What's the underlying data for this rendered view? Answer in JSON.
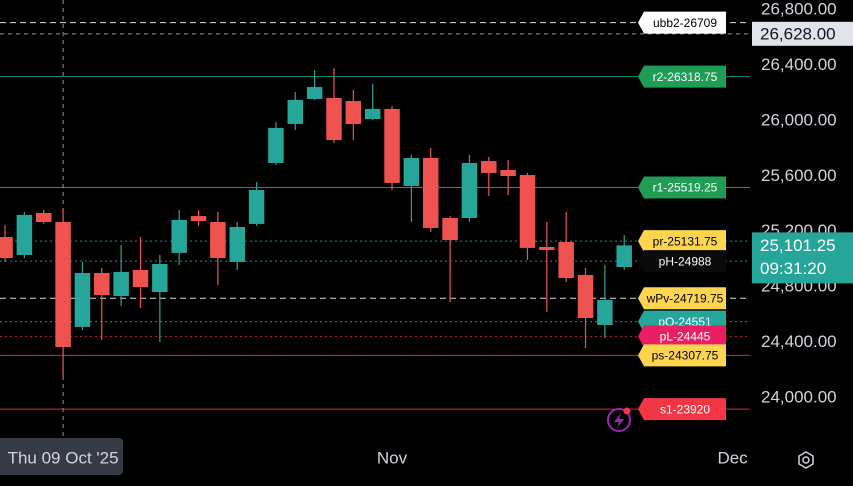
{
  "chart_data": {
    "type": "candlestick",
    "up_color": "#26a69a",
    "down_color": "#ef5350",
    "x": [
      0,
      1,
      2,
      3,
      4,
      5,
      6,
      7,
      8,
      9,
      10,
      11,
      12,
      13,
      14,
      15,
      16,
      17,
      18,
      19,
      20,
      21,
      22,
      23,
      24,
      25,
      26,
      27,
      28,
      29,
      30,
      31,
      32
    ],
    "open": [
      25162,
      25032,
      25335,
      25270,
      24513,
      24902,
      24736,
      24924,
      24765,
      25047,
      25313,
      25270,
      24982,
      25256,
      25696,
      25977,
      26158,
      26165,
      26143,
      26013,
      26086,
      25530,
      25732,
      25299,
      25299,
      25710,
      25645,
      25609,
      25090,
      25126,
      24888,
      24527,
      24945
    ],
    "high": [
      25249,
      25342,
      25357,
      25371,
      24982,
      24938,
      25104,
      25162,
      25032,
      25357,
      25357,
      25342,
      25270,
      25559,
      25992,
      26208,
      26367,
      26381,
      26223,
      26266,
      26107,
      25754,
      25804,
      25313,
      25754,
      25739,
      25718,
      25624,
      25270,
      25342,
      24938,
      24960,
      25176
    ],
    "low": [
      24982,
      25010,
      25256,
      24145,
      24491,
      24419,
      24664,
      24650,
      24404,
      24960,
      25241,
      24816,
      24924,
      25241,
      25682,
      25934,
      26151,
      25840,
      25862,
      26006,
      25501,
      25270,
      25198,
      24693,
      25270,
      25458,
      25465,
      24996,
      24621,
      24837,
      24361,
      24433,
      24924
    ],
    "close": [
      25010,
      25321,
      25270,
      24368,
      24902,
      24743,
      24909,
      24801,
      24967,
      25285,
      25277,
      25010,
      25234,
      25501,
      25949,
      26151,
      26244,
      25862,
      25977,
      26086,
      25552,
      25732,
      25227,
      25140,
      25696,
      25624,
      25602,
      25083,
      25068,
      24866,
      24577,
      24707,
      25101.25
    ],
    "xlim": [
      -0.26,
      38.5
    ],
    "xticks": [
      {
        "value": 20,
        "label": "Nov"
      },
      {
        "value": 37.6,
        "label": "Dec"
      }
    ],
    "ylim": [
      23697,
      26872
    ],
    "yticks": [
      {
        "value": 24000,
        "label": "24,000.00"
      },
      {
        "value": 24400,
        "label": "24,400.00"
      },
      {
        "value": 24800,
        "label": "24,800.00"
      },
      {
        "value": 25200,
        "label": "25,200.00"
      },
      {
        "value": 25600,
        "label": "25,600.00"
      },
      {
        "value": 26000,
        "label": "26,000.00"
      },
      {
        "value": 26400,
        "label": "26,400.00"
      },
      {
        "value": 26800,
        "label": "26,800.00"
      }
    ],
    "crosshair": {
      "x": 3,
      "x_label": "Thu 09 Oct '25",
      "y": {
        "value": 26628,
        "label": "26,628.00"
      }
    },
    "last_price": {
      "value": 25101.25,
      "label": "25,101.25",
      "countdown": "09:31:20"
    },
    "levels": [
      {
        "label": "ubb2-26709",
        "value": 26709,
        "color": "#ffffff",
        "box_color": "#ffffff",
        "text_color": "#000000",
        "style": "dashed"
      },
      {
        "label": "r2-26318.75",
        "value": 26318.75,
        "color": "#22ab94",
        "box_color": "#1f9d55",
        "text_color": "#ffffff",
        "style": "solid"
      },
      {
        "label": "r1-25519.25",
        "value": 25519.25,
        "color": "#22ab94",
        "box_color": "#1f9d55",
        "text_color": "#ffffff",
        "style": "solid"
      },
      {
        "label": "pr-25131.75",
        "value": 25131.75,
        "color": "#26a69a",
        "box_color": "#ffd54f",
        "text_color": "#000000",
        "style": "dotted"
      },
      {
        "label": "pH-24988",
        "value": 24988,
        "color": "#26a69a",
        "box_color": "#0a0a0a",
        "text_color": "#ffffff",
        "style": "dotted"
      },
      {
        "label": "wPv-24719.75",
        "value": 24719.75,
        "color": "#ffffff",
        "box_color": "#ffd54f",
        "text_color": "#000000",
        "style": "dashed"
      },
      {
        "label": "pO-24551",
        "value": 24551,
        "color": "#26a69a",
        "box_color": "#26a69a",
        "text_color": "#ffffff",
        "style": "dotted"
      },
      {
        "label": "pL-24445",
        "value": 24445,
        "color": "#e91e63",
        "box_color": "#e91e63",
        "text_color": "#ffffff",
        "style": "dotted"
      },
      {
        "label": "ps-24307.75",
        "value": 24307.75,
        "color": "#f23645",
        "box_color": "#ffd54f",
        "text_color": "#000000",
        "style": "solid"
      },
      {
        "label": "s1-23920",
        "value": 23920,
        "color": "#f23645",
        "box_color": "#f23645",
        "text_color": "#ffffff",
        "style": "solid"
      }
    ]
  }
}
